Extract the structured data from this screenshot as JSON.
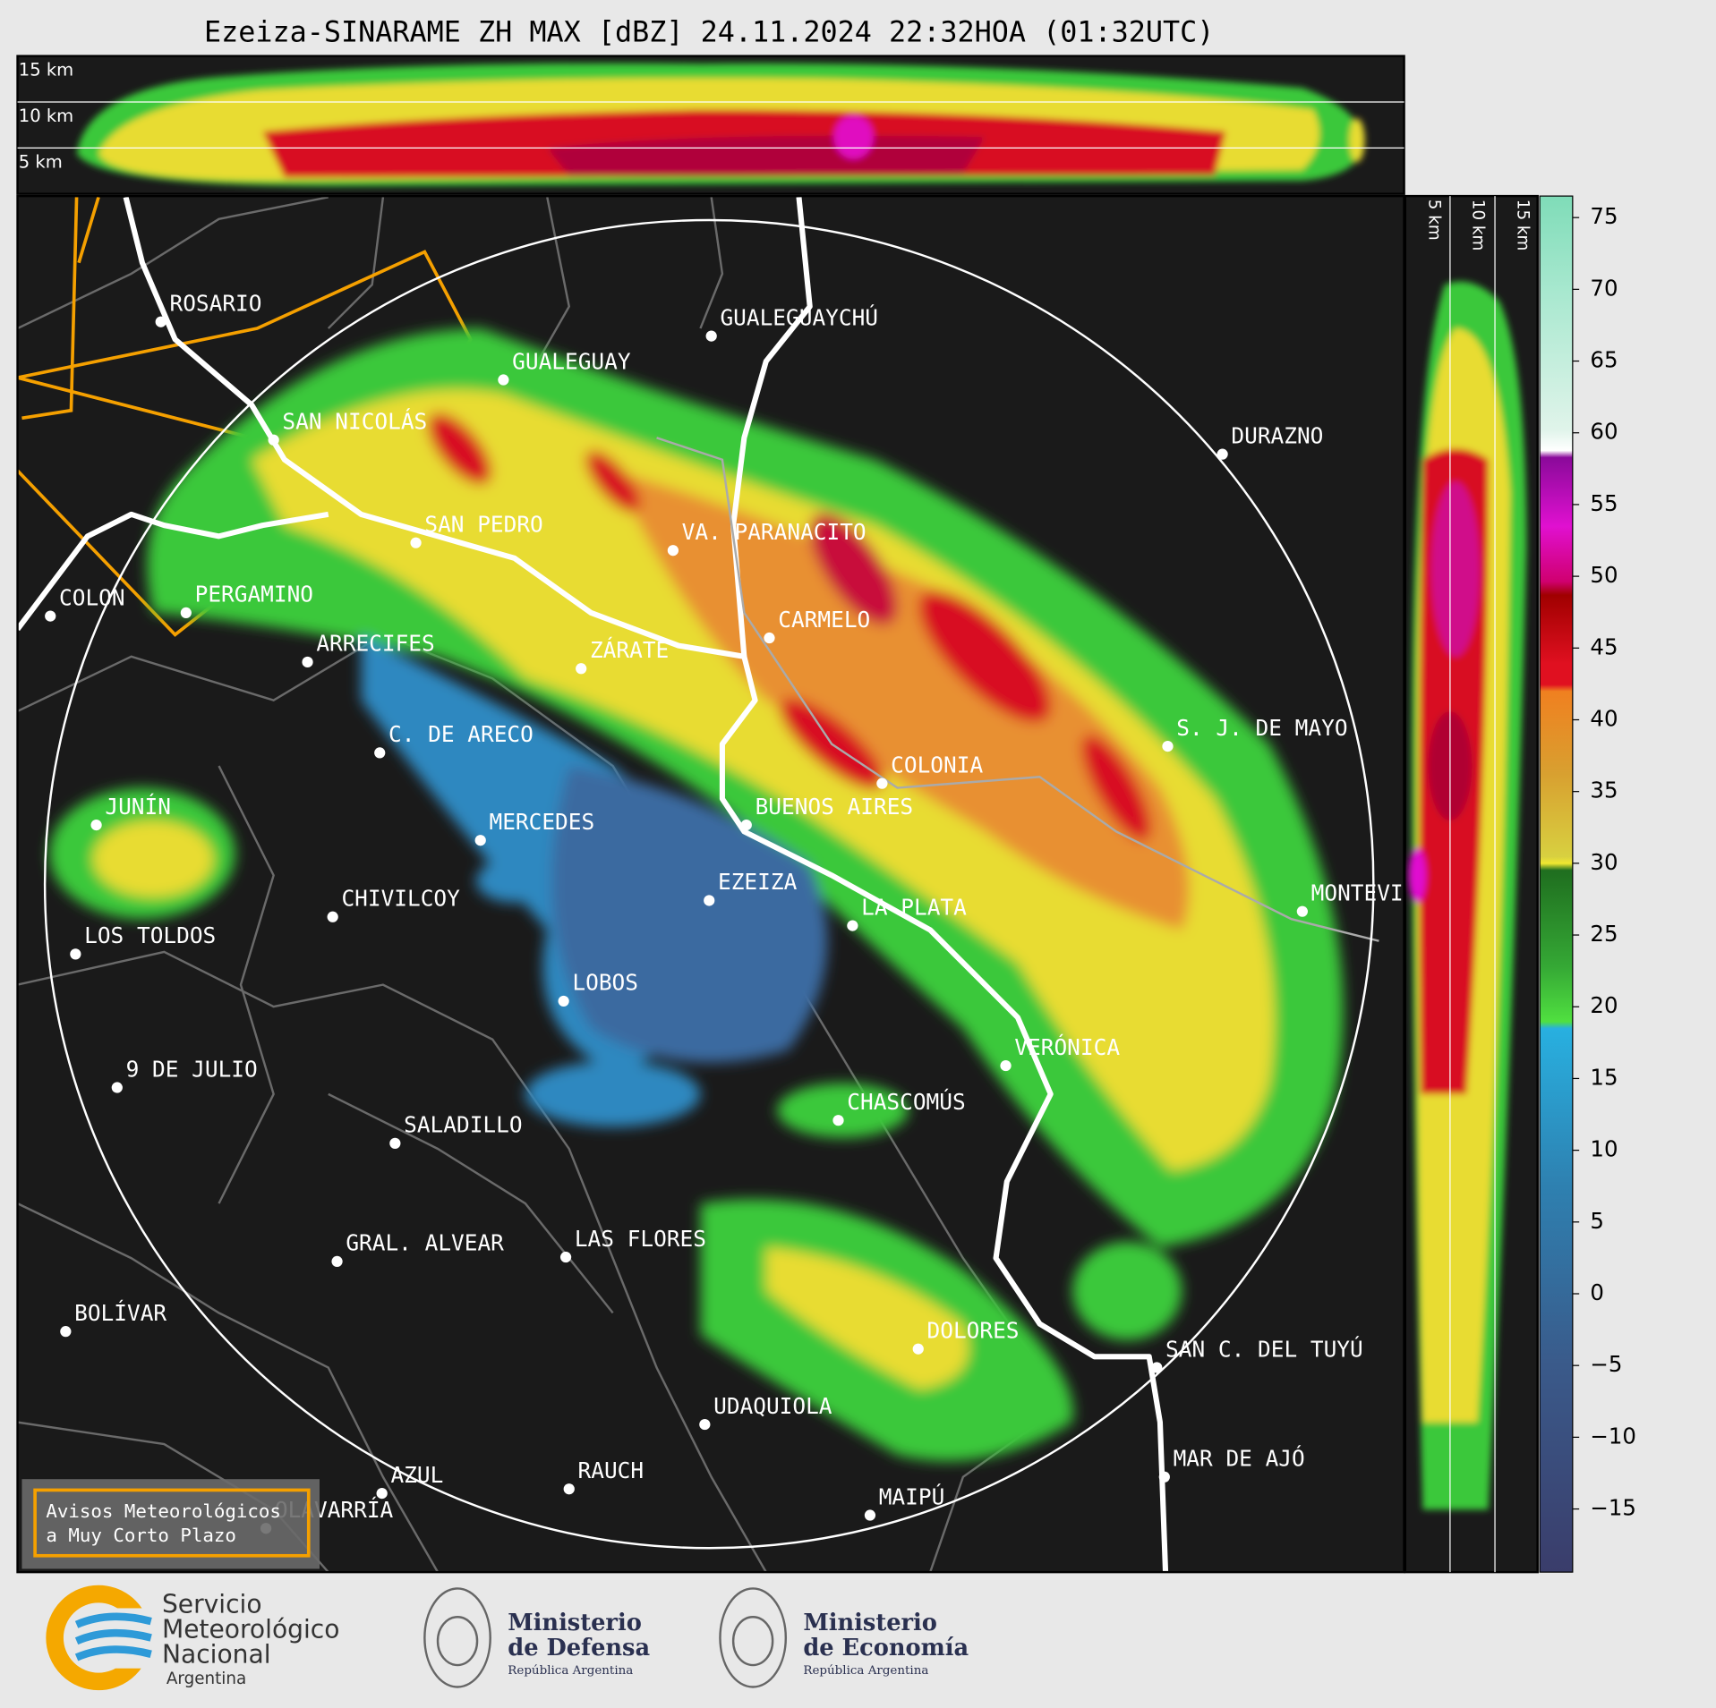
{
  "header": {
    "title": "Ezeiza-SINARAME ZH MAX [dBZ] 24.11.2024 22:32HOA (01:32UTC)"
  },
  "cross_section_top": {
    "height_labels": [
      "15 km",
      "10 km",
      "5 km"
    ]
  },
  "cross_section_right": {
    "height_labels": [
      "5 km",
      "10 km",
      "15 km"
    ]
  },
  "map": {
    "places": [
      "ROSARIO",
      "GUALEGUAYCHÚ",
      "GUALEGUAY",
      "SAN NICOLÁS",
      "DURAZNO",
      "SAN PEDRO",
      "VA. PARANACITO",
      "COLON",
      "PERGAMINO",
      "CARMELO",
      "ARRECIFES",
      "ZÁRATE",
      "C. DE ARECO",
      "S. J. DE MAYO",
      "COLONIA",
      "BUENOS AIRES",
      "JUNÍN",
      "MERCEDES",
      "EZEIZA",
      "MONTEVIDEO",
      "CHIVILCOY",
      "LA PLATA",
      "LOS TOLDOS",
      "LOBOS",
      "VERÓNICA",
      "9 DE JULIO",
      "CHASCOMÚS",
      "SALADILLO",
      "LAS FLORES",
      "GRAL. ALVEAR",
      "BOLÍVAR",
      "DOLORES",
      "SAN C. DEL TUYÚ",
      "UDAQUIOLA",
      "MAR DE AJÓ",
      "RAUCH",
      "AZUL",
      "OLAVARRÍA",
      "MAIPÚ"
    ]
  },
  "colorbar": {
    "range": [
      -19.4,
      76.5
    ],
    "ticks": [
      {
        "value": -15,
        "label": "−15"
      },
      {
        "value": -10,
        "label": "−10"
      },
      {
        "value": -5,
        "label": "−5"
      },
      0,
      5,
      10,
      15,
      20,
      25,
      30,
      35,
      40,
      45,
      50,
      55,
      60,
      65,
      70,
      75
    ]
  },
  "legend": {
    "lines": [
      "Avisos Meteorológicos",
      "a Muy Corto Plazo"
    ]
  },
  "footer": {
    "smn": [
      "Servicio",
      "Meteorológico",
      "Nacional",
      "Argentina"
    ],
    "defensa": [
      "Ministerio",
      "de Defensa",
      "República Argentina"
    ],
    "economia": [
      "Ministerio",
      "de Economía",
      "República Argentina"
    ]
  }
}
